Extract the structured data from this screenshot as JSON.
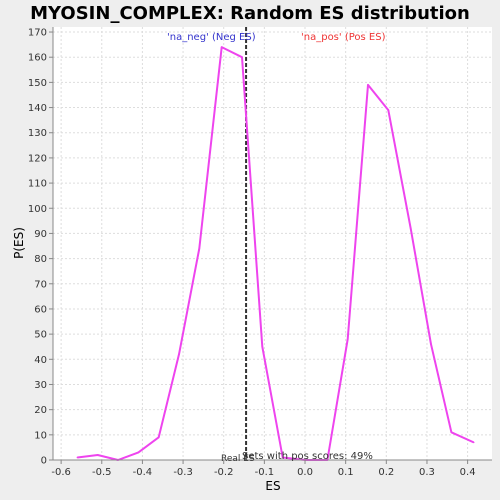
{
  "chart_data": {
    "type": "line",
    "title": "MYOSIN_COMPLEX: Random ES distribution",
    "xlabel": "ES",
    "ylabel": "P(ES)",
    "xlim": [
      -0.62,
      0.46
    ],
    "ylim": [
      0,
      172
    ],
    "x_ticks": [
      -0.6,
      -0.5,
      -0.4,
      -0.3,
      -0.2,
      -0.1,
      0.0,
      0.1,
      0.2,
      0.3,
      0.4
    ],
    "x_tick_labels": [
      "-0.6",
      "-0.5",
      "-0.4",
      "-0.3",
      "-0.2",
      "-0.1",
      "0.0",
      "0.1",
      "0.2",
      "0.3",
      "0.4"
    ],
    "y_ticks": [
      0,
      10,
      20,
      30,
      40,
      50,
      60,
      70,
      80,
      90,
      100,
      110,
      120,
      130,
      140,
      150,
      160,
      170
    ],
    "y_tick_labels": [
      "0",
      "10",
      "20",
      "30",
      "40",
      "50",
      "60",
      "70",
      "80",
      "90",
      "100",
      "110",
      "120",
      "130",
      "140",
      "150",
      "160",
      "170"
    ],
    "grid": true,
    "series": [
      {
        "color": "#ee44ee",
        "x": [
          -0.56,
          -0.51,
          -0.46,
          -0.41,
          -0.36,
          -0.31,
          -0.26,
          -0.205,
          -0.155,
          -0.105,
          -0.055,
          0.0,
          0.055,
          0.105,
          0.155,
          0.205,
          0.26,
          0.31,
          0.36,
          0.415
        ],
        "y": [
          1,
          2,
          0,
          3,
          9,
          42,
          84,
          164,
          160,
          45,
          1,
          0,
          0,
          48,
          149,
          139,
          92,
          46,
          11,
          7
        ]
      }
    ],
    "real_es": -0.145,
    "annotations": {
      "neg_label": "'na_neg' (Neg ES)",
      "pos_label": "'na_pos' (Pos ES)",
      "real_es_label": "Real ES",
      "sets_label": "Sets with pos scores: 49%"
    },
    "colors": {
      "curve": "#ee44ee",
      "neg_label": "#3333cc",
      "pos_label": "#ee3333",
      "real_es_line": "#333333",
      "grid": "#dddddd"
    }
  }
}
